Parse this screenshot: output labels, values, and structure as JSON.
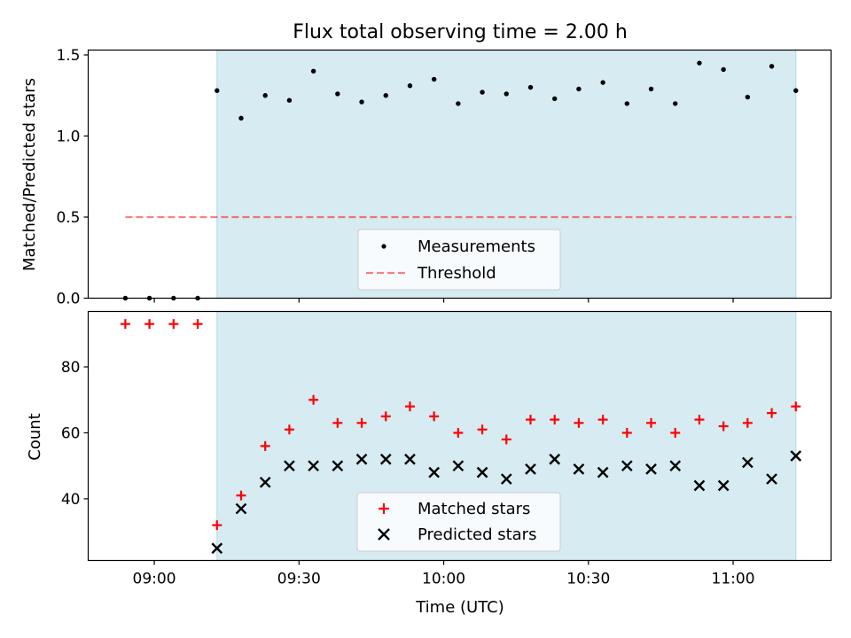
{
  "title": "Flux total observing time = 2.00 h",
  "colors": {
    "shade": "#add8e6",
    "threshold": "#ff0000",
    "matched": "#ff0000",
    "predicted": "#000000",
    "measurement": "#000000"
  },
  "chart_data": [
    {
      "type": "scatter",
      "panel": "top",
      "title": "Flux total observing time = 2.00 h",
      "ylabel": "Matched/Predicted stars",
      "xlabel": "",
      "xlim_minutes": [
        -13.7,
        140.3
      ],
      "ylim": [
        0,
        1.53
      ],
      "yticks": [
        0.0,
        0.5,
        1.0,
        1.5
      ],
      "ytick_labels": [
        "0.0",
        "0.5",
        "1.0",
        "1.5"
      ],
      "shaded_span_minutes": [
        13,
        133
      ],
      "x_minutes": [
        -6,
        -1,
        4,
        9,
        13,
        18,
        23,
        28,
        33,
        38,
        43,
        48,
        53,
        58,
        63,
        68,
        73,
        78,
        83,
        88,
        93,
        98,
        103,
        108,
        113,
        118,
        123,
        128,
        133
      ],
      "series": [
        {
          "name": "Measurements",
          "marker": "dot",
          "values": [
            0,
            0,
            0,
            0,
            1.28,
            1.11,
            1.25,
            1.22,
            1.4,
            1.26,
            1.21,
            1.25,
            1.31,
            1.35,
            1.2,
            1.27,
            1.26,
            1.3,
            1.23,
            1.29,
            1.33,
            1.2,
            1.29,
            1.2,
            1.45,
            1.41,
            1.24,
            1.43,
            1.28
          ]
        },
        {
          "name": "Threshold",
          "marker": "dashed-line",
          "x_minutes": [
            -6,
            133
          ],
          "values": [
            0.5,
            0.5
          ]
        }
      ],
      "legend": {
        "position": "lower-center",
        "entries": [
          "Measurements",
          "Threshold"
        ]
      }
    },
    {
      "type": "scatter",
      "panel": "bottom",
      "ylabel": "Count",
      "xlabel": "Time (UTC)",
      "xlim_minutes": [
        -13.7,
        140.3
      ],
      "ylim": [
        21.3,
        96.8
      ],
      "yticks": [
        40,
        60,
        80
      ],
      "ytick_labels": [
        "40",
        "60",
        "80"
      ],
      "xticks_minutes": [
        0,
        30,
        60,
        90,
        120
      ],
      "xtick_labels": [
        "09:00",
        "09:30",
        "10:00",
        "10:30",
        "11:00"
      ],
      "shaded_span_minutes": [
        13,
        133
      ],
      "x_minutes": [
        -6,
        -1,
        4,
        9,
        13,
        18,
        23,
        28,
        33,
        38,
        43,
        48,
        53,
        58,
        63,
        68,
        73,
        78,
        83,
        88,
        93,
        98,
        103,
        108,
        113,
        118,
        123,
        128,
        133
      ],
      "series": [
        {
          "name": "Matched stars",
          "marker": "plus",
          "values": [
            93,
            93,
            93,
            93,
            32,
            41,
            56,
            61,
            70,
            63,
            63,
            65,
            68,
            65,
            60,
            61,
            58,
            64,
            64,
            63,
            64,
            60,
            63,
            60,
            64,
            62,
            63,
            66,
            68
          ]
        },
        {
          "name": "Predicted stars",
          "marker": "x",
          "x_minutes": [
            13,
            18,
            23,
            28,
            33,
            38,
            43,
            48,
            53,
            58,
            63,
            68,
            73,
            78,
            83,
            88,
            93,
            98,
            103,
            108,
            113,
            118,
            123,
            128,
            133
          ],
          "values": [
            25,
            37,
            45,
            50,
            50,
            50,
            52,
            52,
            52,
            48,
            50,
            48,
            46,
            49,
            52,
            49,
            48,
            50,
            49,
            50,
            44,
            44,
            51,
            46,
            53
          ]
        }
      ],
      "legend": {
        "position": "lower-center",
        "entries": [
          "Matched stars",
          "Predicted stars"
        ]
      }
    }
  ]
}
